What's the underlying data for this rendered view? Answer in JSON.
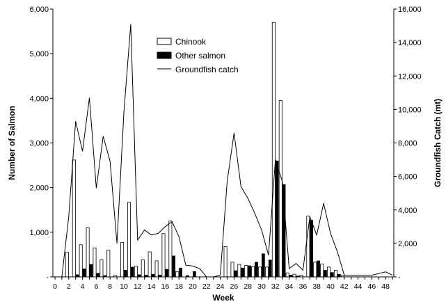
{
  "chart_data": {
    "type": "bar",
    "xlabel": "Week",
    "ylabel_left": "Number of Salmon",
    "ylabel_right": "Groundfish Catch (mt)",
    "y_left_range": [
      0,
      6000
    ],
    "y_right_range": [
      0,
      16000
    ],
    "x_range": [
      0,
      49
    ],
    "left_ticks": [
      "-",
      "1,000",
      "2,000",
      "3,000",
      "4,000",
      "5,000",
      "6,000"
    ],
    "right_ticks": [
      "-",
      "2,000",
      "4,000",
      "6,000",
      "8,000",
      "10,000",
      "12,000",
      "14,000",
      "16,000"
    ],
    "x_ticks": [
      "0",
      "2",
      "4",
      "6",
      "8",
      "10",
      "12",
      "14",
      "16",
      "18",
      "20",
      "22",
      "24",
      "26",
      "28",
      "30",
      "32",
      "34",
      "36",
      "38",
      "40",
      "42",
      "44",
      "46",
      "48"
    ],
    "legend_position": "top-center",
    "grid": false,
    "weeks": [
      0,
      1,
      2,
      3,
      4,
      5,
      6,
      7,
      8,
      9,
      10,
      11,
      12,
      13,
      14,
      15,
      16,
      17,
      18,
      19,
      20,
      21,
      22,
      23,
      24,
      25,
      26,
      27,
      28,
      29,
      30,
      31,
      32,
      33,
      34,
      35,
      36,
      37,
      38,
      39,
      40,
      41,
      42,
      43,
      44,
      45,
      46,
      47,
      48,
      49
    ],
    "series": [
      {
        "name": "Chinook",
        "kind": "bar-hollow",
        "axis": "left",
        "values": [
          0,
          0,
          550,
          2620,
          720,
          1100,
          650,
          380,
          600,
          30,
          770,
          1670,
          240,
          380,
          560,
          360,
          970,
          1250,
          120,
          0,
          0,
          0,
          0,
          0,
          0,
          680,
          330,
          280,
          260,
          230,
          220,
          220,
          5700,
          3950,
          90,
          60,
          40,
          1360,
          330,
          290,
          220,
          150,
          30,
          0,
          0,
          0,
          0,
          0,
          0,
          0
        ]
      },
      {
        "name": "Other salmon",
        "kind": "bar-filled",
        "axis": "left",
        "values": [
          0,
          0,
          0,
          50,
          180,
          280,
          80,
          30,
          0,
          0,
          150,
          220,
          50,
          40,
          60,
          40,
          170,
          470,
          200,
          30,
          120,
          0,
          0,
          0,
          0,
          0,
          140,
          200,
          250,
          330,
          520,
          380,
          2600,
          2070,
          40,
          20,
          0,
          1270,
          360,
          150,
          100,
          60,
          0,
          0,
          0,
          0,
          0,
          0,
          0,
          0
        ]
      },
      {
        "name": "Groundfish catch",
        "kind": "line",
        "axis": "right",
        "values": [
          0,
          0,
          3600,
          9300,
          7500,
          10700,
          5300,
          8400,
          6900,
          2000,
          9800,
          15100,
          2200,
          2800,
          2500,
          2600,
          3000,
          3300,
          2400,
          700,
          650,
          500,
          0,
          0,
          100,
          5700,
          8600,
          5400,
          4700,
          3800,
          2800,
          1300,
          7000,
          5700,
          500,
          800,
          400,
          3600,
          2500,
          4400,
          2600,
          1500,
          100,
          100,
          100,
          100,
          100,
          200,
          300,
          100
        ]
      }
    ]
  }
}
